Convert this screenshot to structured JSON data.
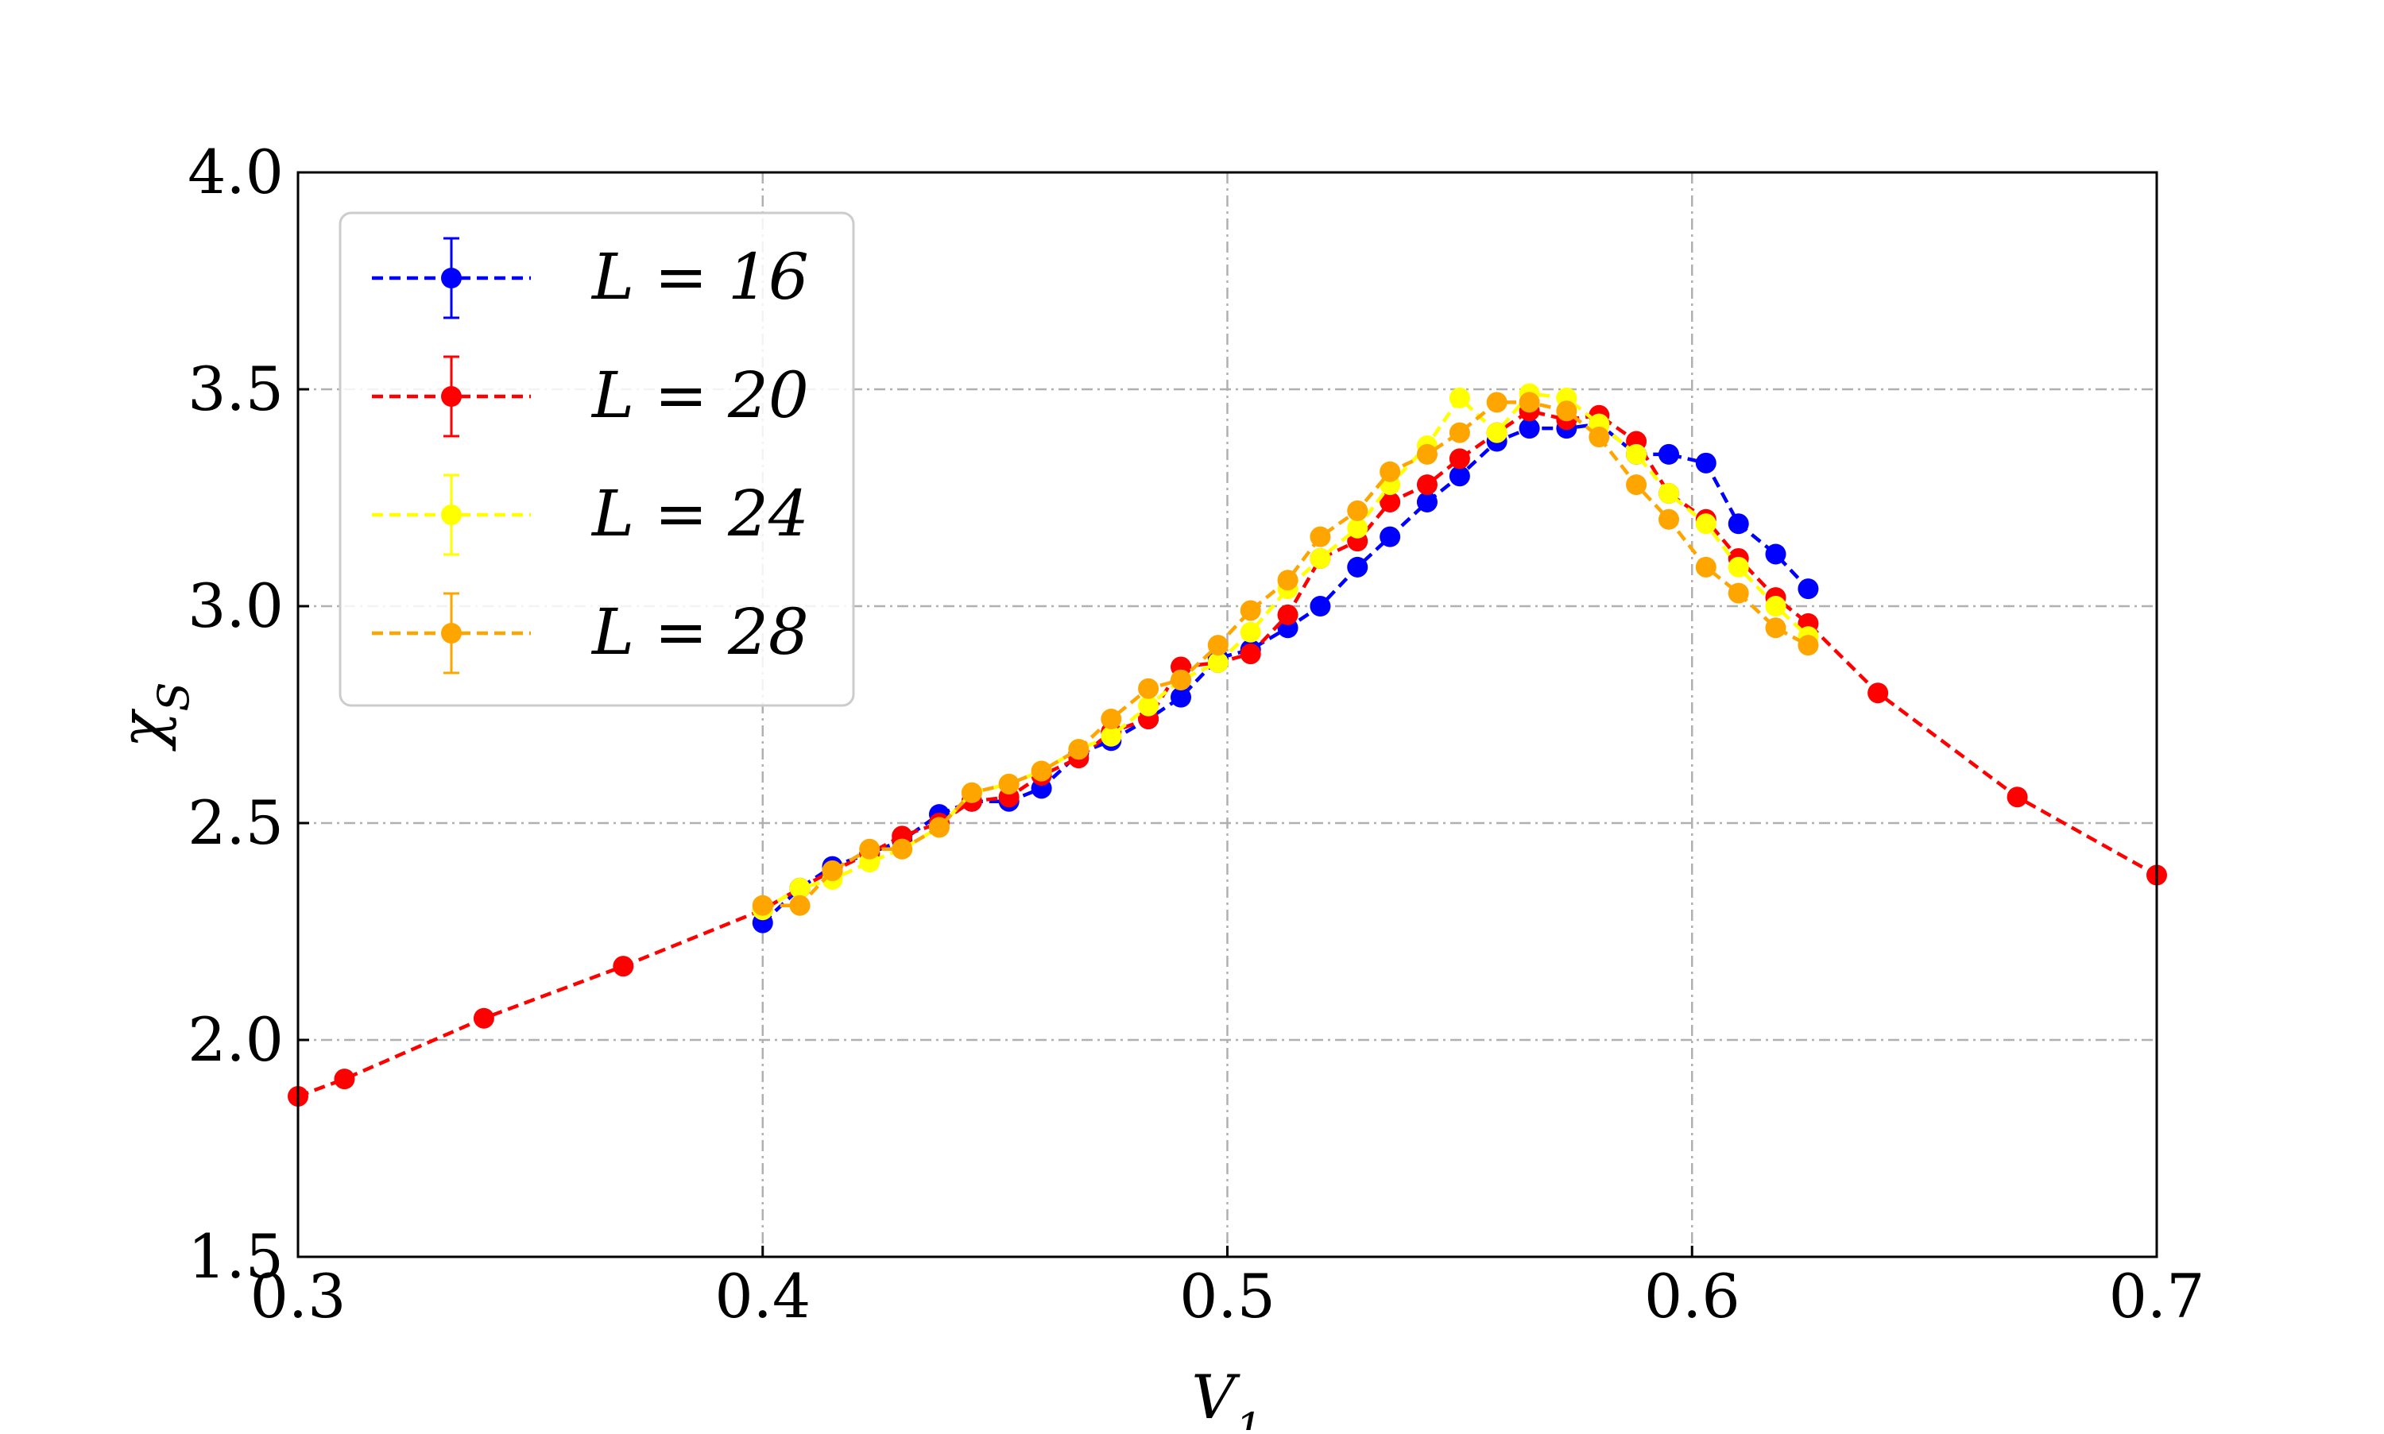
{
  "chart_data": {
    "type": "line",
    "xlabel": "V1",
    "ylabel": "χS",
    "xlim": [
      0.3,
      0.7
    ],
    "ylim": [
      1.5,
      4.0
    ],
    "xticks": [
      "0.3",
      "0.4",
      "0.5",
      "0.6",
      "0.7"
    ],
    "yticks": [
      "1.5",
      "2.0",
      "2.5",
      "3.0",
      "3.5",
      "4.0"
    ],
    "grid": true,
    "legend_position": "top-left",
    "error_bars": true,
    "series": [
      {
        "name": "L = 16",
        "color": "#0000ff",
        "x": [
          0.4,
          0.408,
          0.415,
          0.423,
          0.43,
          0.438,
          0.445,
          0.453,
          0.46,
          0.468,
          0.475,
          0.483,
          0.49,
          0.498,
          0.505,
          0.513,
          0.52,
          0.528,
          0.535,
          0.543,
          0.55,
          0.558,
          0.565,
          0.573,
          0.58,
          0.588,
          0.595,
          0.603,
          0.61,
          0.618,
          0.625
        ],
        "y": [
          2.27,
          2.35,
          2.4,
          2.43,
          2.46,
          2.52,
          2.55,
          2.55,
          2.58,
          2.66,
          2.69,
          2.74,
          2.79,
          2.88,
          2.9,
          2.95,
          3.0,
          3.09,
          3.16,
          3.24,
          3.3,
          3.38,
          3.41,
          3.41,
          3.42,
          3.35,
          3.35,
          3.33,
          3.19,
          3.12,
          3.04
        ]
      },
      {
        "name": "L = 20",
        "color": "#ff0000",
        "x": [
          0.3,
          0.31,
          0.34,
          0.37,
          0.4,
          0.408,
          0.415,
          0.423,
          0.43,
          0.438,
          0.445,
          0.453,
          0.46,
          0.468,
          0.475,
          0.483,
          0.49,
          0.498,
          0.505,
          0.513,
          0.52,
          0.528,
          0.535,
          0.543,
          0.55,
          0.558,
          0.565,
          0.573,
          0.58,
          0.588,
          0.595,
          0.603,
          0.61,
          0.618,
          0.625,
          0.64,
          0.67,
          0.7
        ],
        "y": [
          1.87,
          1.91,
          2.05,
          2.17,
          2.3,
          2.35,
          2.39,
          2.43,
          2.47,
          2.5,
          2.55,
          2.56,
          2.61,
          2.65,
          2.71,
          2.74,
          2.86,
          2.87,
          2.89,
          2.98,
          3.11,
          3.15,
          3.24,
          3.28,
          3.34,
          3.4,
          3.45,
          3.43,
          3.44,
          3.38,
          3.26,
          3.2,
          3.11,
          3.02,
          2.96,
          2.8,
          2.56,
          2.38
        ]
      },
      {
        "name": "L = 24",
        "color": "#ffff00",
        "x": [
          0.4,
          0.408,
          0.415,
          0.423,
          0.43,
          0.438,
          0.445,
          0.453,
          0.46,
          0.468,
          0.475,
          0.483,
          0.49,
          0.498,
          0.505,
          0.513,
          0.52,
          0.528,
          0.535,
          0.543,
          0.55,
          0.558,
          0.565,
          0.573,
          0.58,
          0.588,
          0.595,
          0.603,
          0.61,
          0.618,
          0.625
        ],
        "y": [
          2.3,
          2.35,
          2.37,
          2.41,
          2.44,
          2.49,
          2.57,
          2.59,
          2.62,
          2.67,
          2.7,
          2.77,
          2.83,
          2.87,
          2.94,
          3.04,
          3.11,
          3.18,
          3.28,
          3.37,
          3.48,
          3.4,
          3.49,
          3.48,
          3.42,
          3.35,
          3.26,
          3.19,
          3.09,
          3.0,
          2.93
        ]
      },
      {
        "name": "L = 28",
        "color": "#ffa500",
        "x": [
          0.4,
          0.408,
          0.415,
          0.423,
          0.43,
          0.438,
          0.445,
          0.453,
          0.46,
          0.468,
          0.475,
          0.483,
          0.49,
          0.498,
          0.505,
          0.513,
          0.52,
          0.528,
          0.535,
          0.543,
          0.55,
          0.558,
          0.565,
          0.573,
          0.58,
          0.588,
          0.595,
          0.603,
          0.61,
          0.618,
          0.625
        ],
        "y": [
          2.31,
          2.31,
          2.39,
          2.44,
          2.44,
          2.49,
          2.57,
          2.59,
          2.62,
          2.67,
          2.74,
          2.81,
          2.83,
          2.91,
          2.99,
          3.06,
          3.16,
          3.22,
          3.31,
          3.35,
          3.4,
          3.47,
          3.47,
          3.45,
          3.39,
          3.28,
          3.2,
          3.09,
          3.03,
          2.95,
          2.91
        ]
      }
    ]
  }
}
